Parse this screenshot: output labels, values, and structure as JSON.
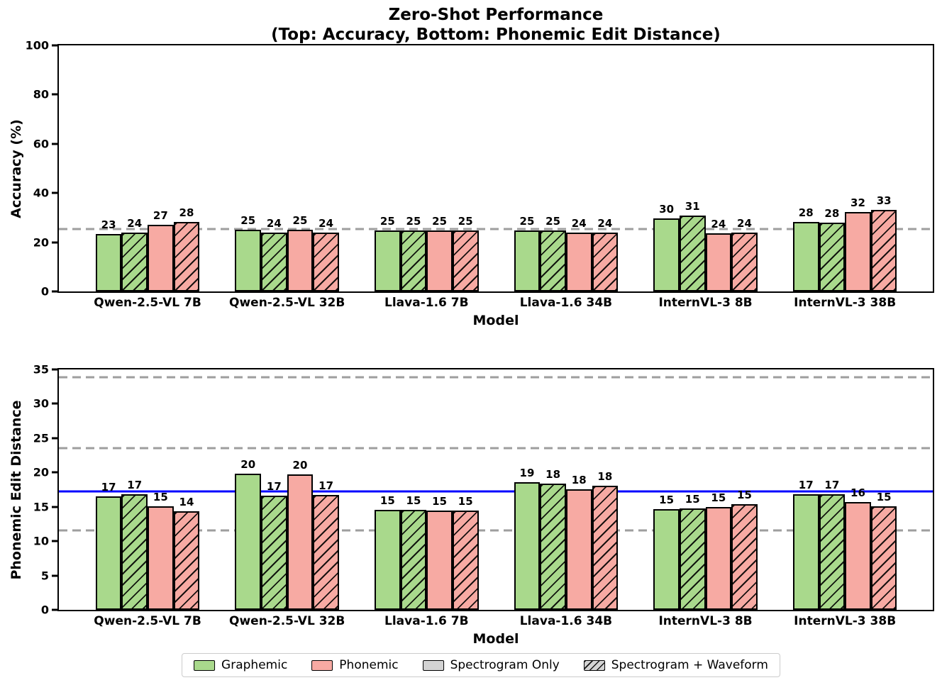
{
  "title": {
    "line1": "Zero-Shot Performance",
    "line2": "(Top: Accuracy, Bottom: Phonemic Edit Distance)"
  },
  "colors": {
    "graphemic_green": "#a9d98c",
    "phonemic_pink": "#f7aaa3",
    "legend_gray": "#d3d3d3",
    "dashed_line_gray": "#9e9e9e",
    "baseline_blue": "#0000ff",
    "bar_edge": "#000000"
  },
  "legend": {
    "items": [
      {
        "label": "Graphemic",
        "color_key": "graphemic_green",
        "hatch": false
      },
      {
        "label": "Phonemic",
        "color_key": "phonemic_pink",
        "hatch": false
      },
      {
        "label": "Spectrogram Only",
        "color_key": "legend_gray",
        "hatch": false
      },
      {
        "label": "Spectrogram + Waveform",
        "color_key": "legend_gray",
        "hatch": true
      }
    ]
  },
  "chart_data": [
    {
      "type": "bar",
      "position": "top",
      "ylabel": "Accuracy (%)",
      "xlabel": "Model",
      "ylim": [
        0,
        100
      ],
      "yticks": [
        0,
        20,
        40,
        60,
        80,
        100
      ],
      "categories": [
        "Qwen-2.5-VL 7B",
        "Qwen-2.5-VL 32B",
        "Llava-1.6 7B",
        "Llava-1.6 34B",
        "InternVL-3 8B",
        "InternVL-3 38B"
      ],
      "series": [
        {
          "name": "Graphemic / Spectrogram Only",
          "color_key": "graphemic_green",
          "hatch": false,
          "values": [
            23,
            25,
            25,
            25,
            30,
            28
          ],
          "heights": [
            23.4,
            25.2,
            24.8,
            24.7,
            29.6,
            28.2
          ]
        },
        {
          "name": "Graphemic / Spectrogram + Waveform",
          "color_key": "graphemic_green",
          "hatch": true,
          "values": [
            24,
            24,
            25,
            25,
            31,
            28
          ],
          "heights": [
            23.9,
            23.9,
            24.8,
            24.7,
            30.8,
            27.9
          ]
        },
        {
          "name": "Phonemic / Spectrogram Only",
          "color_key": "phonemic_pink",
          "hatch": false,
          "values": [
            27,
            25,
            25,
            24,
            24,
            32
          ],
          "heights": [
            27.0,
            25.2,
            24.8,
            23.9,
            23.5,
            32.2
          ]
        },
        {
          "name": "Phonemic / Spectrogram + Waveform",
          "color_key": "phonemic_pink",
          "hatch": true,
          "values": [
            28,
            24,
            25,
            24,
            24,
            33
          ],
          "heights": [
            28.3,
            23.9,
            24.8,
            23.8,
            23.9,
            33.2
          ]
        }
      ],
      "reference_lines": [
        {
          "value": 25.4,
          "style": "dashed",
          "color_key": "dashed_line_gray"
        }
      ]
    },
    {
      "type": "bar",
      "position": "bottom",
      "ylabel": "Phonemic Edit Distance",
      "xlabel": "Model",
      "ylim": [
        0,
        35
      ],
      "yticks": [
        0,
        5,
        10,
        15,
        20,
        25,
        30,
        35
      ],
      "categories": [
        "Qwen-2.5-VL 7B",
        "Qwen-2.5-VL 32B",
        "Llava-1.6 7B",
        "Llava-1.6 34B",
        "InternVL-3 8B",
        "InternVL-3 38B"
      ],
      "series": [
        {
          "name": "Graphemic / Spectrogram Only",
          "color_key": "graphemic_green",
          "hatch": false,
          "values": [
            17,
            20,
            15,
            19,
            15,
            17
          ],
          "heights": [
            16.5,
            19.8,
            14.6,
            18.6,
            14.7,
            16.8
          ]
        },
        {
          "name": "Graphemic / Spectrogram + Waveform",
          "color_key": "graphemic_green",
          "hatch": true,
          "values": [
            17,
            17,
            15,
            18,
            15,
            17
          ],
          "heights": [
            16.8,
            16.6,
            14.6,
            18.4,
            14.8,
            16.8
          ]
        },
        {
          "name": "Phonemic / Spectrogram Only",
          "color_key": "phonemic_pink",
          "hatch": false,
          "values": [
            15,
            20,
            15,
            18,
            15,
            16
          ],
          "heights": [
            15.1,
            19.7,
            14.5,
            17.6,
            15.0,
            15.7
          ]
        },
        {
          "name": "Phonemic / Spectrogram + Waveform",
          "color_key": "phonemic_pink",
          "hatch": true,
          "values": [
            14,
            17,
            15,
            18,
            15,
            15
          ],
          "heights": [
            14.4,
            16.7,
            14.5,
            18.1,
            15.4,
            15.1
          ]
        }
      ],
      "reference_lines": [
        {
          "value": 33.9,
          "style": "dashed",
          "color_key": "dashed_line_gray"
        },
        {
          "value": 23.5,
          "style": "dashed",
          "color_key": "dashed_line_gray"
        },
        {
          "value": 17.2,
          "style": "solid",
          "color_key": "baseline_blue"
        },
        {
          "value": 11.6,
          "style": "dashed",
          "color_key": "dashed_line_gray"
        }
      ]
    }
  ]
}
